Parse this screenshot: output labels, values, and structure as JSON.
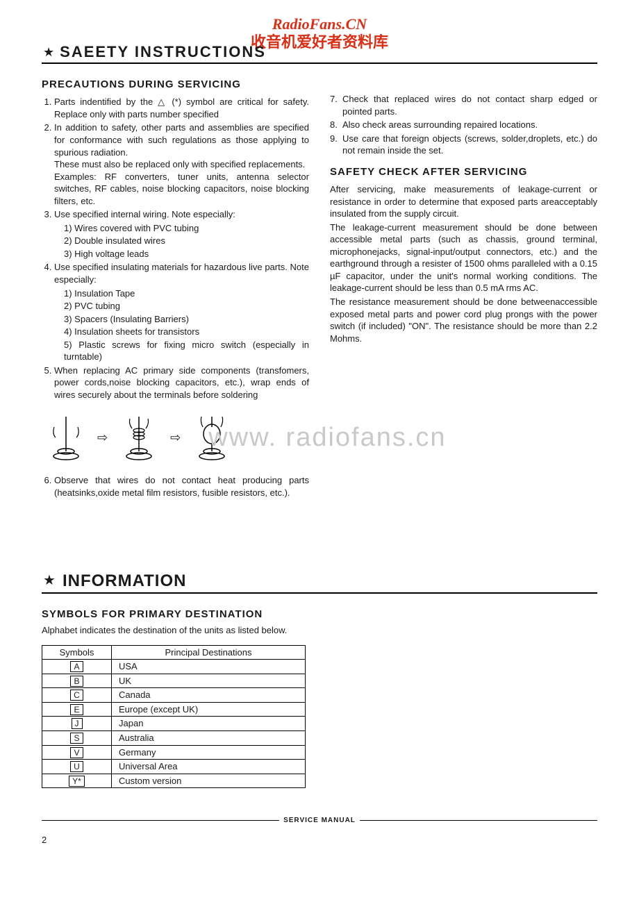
{
  "watermark": {
    "top_line1": "RadioFans.CN",
    "top_line2": "收音机爱好者资料库",
    "mid": "www. radiofans.cn"
  },
  "section1": {
    "title": "SAEETY   INSTRUCTIONS",
    "heading": "PRECAUTIONS  DURING  SERVICING",
    "items": {
      "i1": "Parts  indentified  by  the  △  (*)  symbol  are  critical  for safety.  Replace  only  with  parts  number  specified",
      "i2a": "In  addition  to  safety,  other  parts  and  assemblies  are specified  for  conformance  with  such  regulations  as those  applying  to  spurious  radiation.",
      "i2b": "These  must  also  be  replaced  only  with  specified  replacements.",
      "i2c": "Examples:  RF  converters,  tuner  units,  antenna  selector switches,  RF  cables,  noise  blocking  capacitors,  noise blocking  filters,  etc.",
      "i3": "Use  specified  internal  wiring.  Note  especially:",
      "i3_1": "1) Wires  covered  with  PVC  tubing",
      "i3_2": "2) Double  insulated  wires",
      "i3_3": "3) High  voltage  leads",
      "i4": "Use  specified  insulating  materials  for  hazardous  live parts.  Note  especially:",
      "i4_1": "1) Insulation  Tape",
      "i4_2": "2) PVC  tubing",
      "i4_3": "3) Spacers  (Insulating  Barriers)",
      "i4_4": "4) Insulation  sheets  for  transistors",
      "i4_5": "5) Plastic  screws  for  fixing  micro  switch  (especially  in turntable)",
      "i5": "When  replacing  AC  primary  side  components  (transfomers,  power  cords,noise  blocking  capacitors,  etc.), wrap  ends  of  wires  securely  about  the  terminals  before soldering",
      "i6": "Observe  that  wires  do  not  contact  heat  producing  parts (heatsinks,oxide  metal  film  resistors,  fusible  resistors, etc.)."
    },
    "right": {
      "i7": "Check  that  replaced  wires  do  not  contact  sharp  edged or  pointed  parts.",
      "i8": "Also  check  areas  surrounding  repaired  locations.",
      "i9": "Use  care  that  foreign  objects  (screws,  solder,droplets, etc.)  do  not  remain  inside  the  set.",
      "heading2": "SAFETY  CHECK  AFTER  SERVICING",
      "p1": "After  servicing,  make  measurements  of  leakage-current or  resistance  in  order  to  determine  that  exposed  parts areacceptably  insulated  from  the  supply  circuit.",
      "p2": "The  leakage-current  measurement  should  be  done  between  accessible  metal  parts  (such  as  chassis,  ground terminal,  microphonejacks,  signal-input/output  connectors,  etc.)  and  the  earthground  through  a  resister  of  1500 ohms  paralleled  with  a  0.15  µF  capacitor,  under  the  unit's normal  working  conditions.  The  leakage-current  should  be less  than  0.5  mA  rms  AC.",
      "p3": "The  resistance  measurement  should  be  done  betweenaccessible  exposed  metal  parts  and  power  cord  plug  prongs with  the  power  switch  (if  included)  \"ON\".  The  resistance should  be  more  than  2.2  Mohms."
    }
  },
  "section2": {
    "title": "INFORMATION",
    "heading": "SYMBOLS  FOR  PRIMARY  DESTINATION",
    "desc": "Alphabet  indicates  the  destination  of  the  units  as  listed below.",
    "table": {
      "h1": "Symbols",
      "h2": "Principal   Destinations",
      "rows": [
        {
          "s": "A",
          "d": "USA"
        },
        {
          "s": "B",
          "d": "UK"
        },
        {
          "s": "C",
          "d": "Canada"
        },
        {
          "s": "E",
          "d": "Europe  (except  UK)"
        },
        {
          "s": "J",
          "d": "Japan"
        },
        {
          "s": "S",
          "d": "Australia"
        },
        {
          "s": "V",
          "d": "Germany"
        },
        {
          "s": "U",
          "d": "Universal  Area"
        },
        {
          "s": "Y*",
          "d": "Custom  version"
        }
      ]
    }
  },
  "footer": {
    "label": "SERVICE MANUAL",
    "page": "2"
  }
}
